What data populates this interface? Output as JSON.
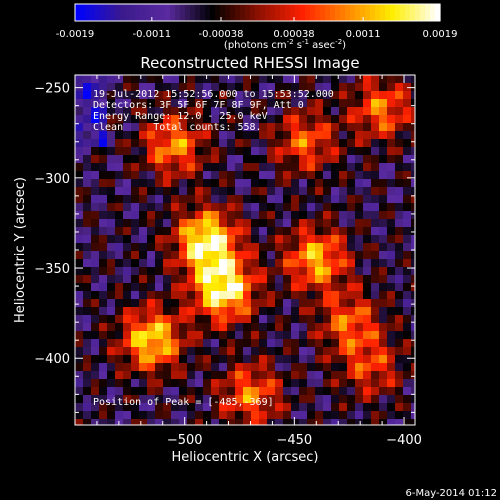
{
  "colorbar": {
    "tick_labels": [
      "-0.0019",
      "-0.0011",
      "-0.00038",
      "0.00038",
      "0.0011",
      "0.0019"
    ],
    "tick_values": [
      -0.0019,
      -0.0011,
      -0.00038,
      0.00038,
      0.0011,
      0.0019
    ],
    "range": [
      -0.0019,
      0.0019
    ],
    "units_prefix": "(photons cm",
    "units_exp1": "-2",
    "units_mid": " s",
    "units_exp2": "-1",
    "units_mid2": " asec",
    "units_exp3": "-2",
    "units_suffix": ")",
    "colors": [
      "#0000ff",
      "#3a1a8c",
      "#5a2aa0",
      "#000000",
      "#8a1000",
      "#ff2000",
      "#ff8800",
      "#ffee00",
      "#ffffff"
    ]
  },
  "chart_data": {
    "type": "heatmap",
    "title": "Reconstructed RHESSI Image",
    "xlabel": "Heliocentric X (arcsec)",
    "ylabel": "Heliocentric Y (arcsec)",
    "xlim": [
      -550,
      -395
    ],
    "ylim": [
      -437,
      -243
    ],
    "x_ticks": [
      -500,
      -450,
      -400
    ],
    "x_tick_labels": [
      "−500",
      "−450",
      "−400"
    ],
    "y_ticks": [
      -250,
      -300,
      -350,
      -400
    ],
    "y_tick_labels": [
      "−250",
      "−300",
      "−350",
      "−400"
    ],
    "grid": false,
    "bright_regions": [
      {
        "x": -490,
        "y": -335,
        "level": 1.0
      },
      {
        "x": -482,
        "y": -362,
        "level": 1.0
      },
      {
        "x": -515,
        "y": -390,
        "level": 0.85
      },
      {
        "x": -440,
        "y": -345,
        "level": 0.75
      },
      {
        "x": -470,
        "y": -420,
        "level": 0.6
      },
      {
        "x": -425,
        "y": -380,
        "level": 0.55
      },
      {
        "x": -505,
        "y": -282,
        "level": 0.65
      },
      {
        "x": -445,
        "y": -280,
        "level": 0.55
      },
      {
        "x": -410,
        "y": -262,
        "level": 0.6
      },
      {
        "x": -415,
        "y": -405,
        "level": 0.45
      }
    ],
    "annotations": {
      "time": "19-Jul-2012 15:52:56.000 to 15:53:52.000",
      "detectors": "Detectors: 3F 5F 6F 7F 8F 9F, Att 0",
      "energy": "Energy Range: 12.0 - 25.0 keV",
      "clean": "Clean     Total counts: 558.",
      "peak": "Position of Peak = [-485,-369]"
    }
  },
  "footer": {
    "date": "6-May-2014 01:12"
  }
}
